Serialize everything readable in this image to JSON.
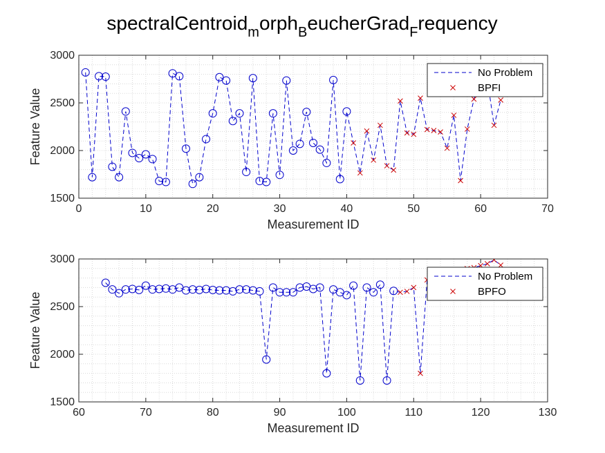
{
  "figure": {
    "title_base": "spectralCentroid",
    "title_sub1": "m",
    "title_mid1": "orph",
    "title_sub2": "B",
    "title_mid2": "eucherGrad",
    "title_sub3": "F",
    "title_end": "requency"
  },
  "chart_data": [
    {
      "type": "line",
      "xlabel": "Measurement ID",
      "ylabel": "Feature Value",
      "xlim": [
        0,
        70
      ],
      "ylim": [
        1500,
        3000
      ],
      "xticks": [
        0,
        10,
        20,
        30,
        40,
        50,
        60,
        70
      ],
      "yticks": [
        1500,
        2000,
        2500,
        3000
      ],
      "grid": "minor dotted",
      "legend_position": "top-right",
      "series": [
        {
          "name": "No Problem",
          "style": "dashed line, circle markers",
          "color": "#0000cc",
          "x": [
            1,
            2,
            3,
            4,
            5,
            6,
            7,
            8,
            9,
            10,
            11,
            12,
            13,
            14,
            15,
            16,
            17,
            18,
            19,
            20,
            21,
            22,
            23,
            24,
            25,
            26,
            27,
            28,
            29,
            30,
            31,
            32,
            33,
            34,
            35,
            36,
            37,
            38,
            39,
            40
          ],
          "y": [
            2820,
            1720,
            2780,
            2775,
            1830,
            1720,
            2410,
            1975,
            1920,
            1960,
            1910,
            1680,
            1670,
            2810,
            2780,
            2020,
            1650,
            1720,
            2120,
            2390,
            2770,
            2735,
            2310,
            2390,
            1775,
            2760,
            1680,
            1670,
            2390,
            1745,
            2735,
            2000,
            2070,
            2405,
            2080,
            2010,
            1870,
            2740,
            1700,
            2410
          ]
        },
        {
          "name": "BPFI",
          "style": "dashed line, x markers",
          "color": "#cc0000",
          "line_color": "#0000cc",
          "x": [
            41,
            42,
            43,
            44,
            45,
            46,
            47,
            48,
            49,
            50,
            51,
            52,
            53,
            54,
            55,
            56,
            57,
            58,
            59,
            60,
            61,
            62,
            63
          ],
          "y": [
            2080,
            1765,
            2205,
            1900,
            2265,
            1840,
            1795,
            2520,
            2185,
            2170,
            2550,
            2220,
            2210,
            2195,
            2025,
            2370,
            1685,
            2225,
            2540,
            2760,
            2750,
            2265,
            2530
          ]
        }
      ]
    },
    {
      "type": "line",
      "xlabel": "Measurement ID",
      "ylabel": "Feature Value",
      "xlim": [
        60,
        130
      ],
      "ylim": [
        1500,
        3000
      ],
      "xticks": [
        60,
        70,
        80,
        90,
        100,
        110,
        120,
        130
      ],
      "yticks": [
        1500,
        2000,
        2500,
        3000
      ],
      "grid": "minor dotted",
      "legend_position": "top-right",
      "series": [
        {
          "name": "No Problem",
          "style": "dashed line, circle markers",
          "color": "#0000cc",
          "x": [
            64,
            65,
            66,
            67,
            68,
            69,
            70,
            71,
            72,
            73,
            74,
            75,
            76,
            77,
            78,
            79,
            80,
            81,
            82,
            83,
            84,
            85,
            86,
            87,
            88,
            89,
            90,
            91,
            92,
            93,
            94,
            95,
            96,
            97,
            98,
            99,
            100,
            101,
            102,
            103,
            104,
            105,
            106,
            107
          ],
          "y": [
            2750,
            2680,
            2640,
            2680,
            2685,
            2675,
            2720,
            2680,
            2685,
            2690,
            2680,
            2700,
            2670,
            2680,
            2675,
            2685,
            2675,
            2670,
            2670,
            2660,
            2680,
            2680,
            2670,
            2660,
            1945,
            2700,
            2650,
            2650,
            2650,
            2700,
            2710,
            2685,
            2700,
            1800,
            2680,
            2650,
            2620,
            2720,
            1725,
            2700,
            2650,
            2730,
            1725,
            2665
          ]
        },
        {
          "name": "BPFO",
          "style": "dashed line, x markers",
          "color": "#cc0000",
          "line_color": "#0000cc",
          "x": [
            108,
            109,
            110,
            111,
            112,
            113,
            114,
            115,
            116,
            117,
            118,
            119,
            120,
            121,
            122,
            123
          ],
          "y": [
            2650,
            2660,
            2700,
            1800,
            2780,
            2800,
            2820,
            2840,
            2860,
            2880,
            2900,
            2910,
            2930,
            2950,
            2990,
            2935
          ]
        }
      ]
    }
  ]
}
